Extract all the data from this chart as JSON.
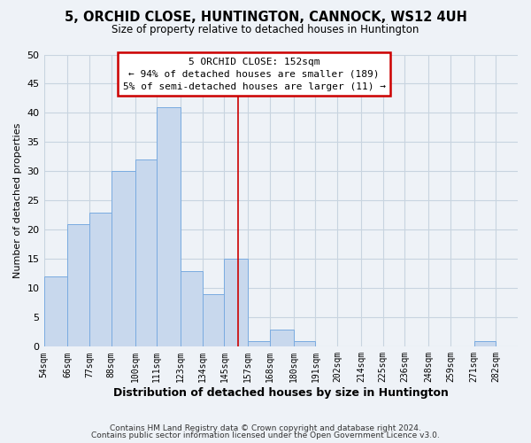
{
  "title": "5, ORCHID CLOSE, HUNTINGTON, CANNOCK, WS12 4UH",
  "subtitle": "Size of property relative to detached houses in Huntington",
  "xlabel": "Distribution of detached houses by size in Huntington",
  "ylabel": "Number of detached properties",
  "footer_line1": "Contains HM Land Registry data © Crown copyright and database right 2024.",
  "footer_line2": "Contains public sector information licensed under the Open Government Licence v3.0.",
  "bin_labels": [
    "54sqm",
    "66sqm",
    "77sqm",
    "88sqm",
    "100sqm",
    "111sqm",
    "123sqm",
    "134sqm",
    "145sqm",
    "157sqm",
    "168sqm",
    "180sqm",
    "191sqm",
    "202sqm",
    "214sqm",
    "225sqm",
    "236sqm",
    "248sqm",
    "259sqm",
    "271sqm",
    "282sqm"
  ],
  "bin_edges": [
    54,
    66,
    77,
    88,
    100,
    111,
    123,
    134,
    145,
    157,
    168,
    180,
    191,
    202,
    214,
    225,
    236,
    248,
    259,
    271,
    282,
    293
  ],
  "counts": [
    12,
    21,
    23,
    30,
    32,
    41,
    13,
    9,
    15,
    1,
    3,
    1,
    0,
    0,
    0,
    0,
    0,
    0,
    0,
    1,
    0
  ],
  "bar_color": "#c8d8ed",
  "bar_edgecolor": "#7aabe0",
  "property_size": 152,
  "vline_color": "#cc0000",
  "annotation_text_line1": "5 ORCHID CLOSE: 152sqm",
  "annotation_text_line2": "← 94% of detached houses are smaller (189)",
  "annotation_text_line3": "5% of semi-detached houses are larger (11) →",
  "annotation_box_facecolor": "#ffffff",
  "annotation_box_edgecolor": "#cc0000",
  "ylim": [
    0,
    50
  ],
  "yticks": [
    0,
    5,
    10,
    15,
    20,
    25,
    30,
    35,
    40,
    45,
    50
  ],
  "background_color": "#eef2f7",
  "grid_color": "#c8d4e0"
}
